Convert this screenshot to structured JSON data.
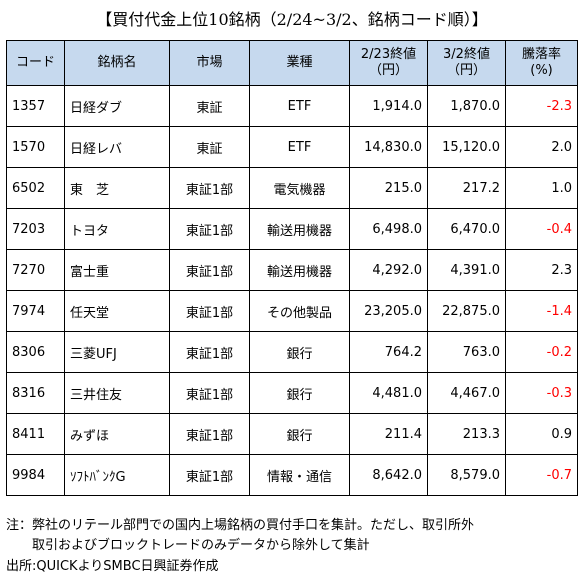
{
  "title": "【買付代金上位10銘柄（2/24~3/2、銘柄コード順）】",
  "headers": {
    "code": "コード",
    "name": "銘柄名",
    "market": "市場",
    "sector": "業種",
    "price1_line1": "2/23終値",
    "price1_line2": "（円）",
    "price2_line1": "3/2終値",
    "price2_line2": "（円）",
    "change_line1": "騰落率",
    "change_line2": "(%)"
  },
  "rows": [
    {
      "code": "1357",
      "name": "日経ダブ",
      "market": "東証",
      "sector": "ETF",
      "price1": "1,914.0",
      "price2": "1,870.0",
      "change": "-2.3",
      "negative": true
    },
    {
      "code": "1570",
      "name": "日経レバ",
      "market": "東証",
      "sector": "ETF",
      "price1": "14,830.0",
      "price2": "15,120.0",
      "change": "2.0",
      "negative": false
    },
    {
      "code": "6502",
      "name": "東　芝",
      "market": "東証1部",
      "sector": "電気機器",
      "price1": "215.0",
      "price2": "217.2",
      "change": "1.0",
      "negative": false
    },
    {
      "code": "7203",
      "name": "トヨタ",
      "market": "東証1部",
      "sector": "輸送用機器",
      "price1": "6,498.0",
      "price2": "6,470.0",
      "change": "-0.4",
      "negative": true
    },
    {
      "code": "7270",
      "name": "富士重",
      "market": "東証1部",
      "sector": "輸送用機器",
      "price1": "4,292.0",
      "price2": "4,391.0",
      "change": "2.3",
      "negative": false
    },
    {
      "code": "7974",
      "name": "任天堂",
      "market": "東証1部",
      "sector": "その他製品",
      "price1": "23,205.0",
      "price2": "22,875.0",
      "change": "-1.4",
      "negative": true
    },
    {
      "code": "8306",
      "name": "三菱UFJ",
      "market": "東証1部",
      "sector": "銀行",
      "price1": "764.2",
      "price2": "763.0",
      "change": "-0.2",
      "negative": true
    },
    {
      "code": "8316",
      "name": "三井住友",
      "market": "東証1部",
      "sector": "銀行",
      "price1": "4,481.0",
      "price2": "4,467.0",
      "change": "-0.3",
      "negative": true
    },
    {
      "code": "8411",
      "name": "みずほ",
      "market": "東証1部",
      "sector": "銀行",
      "price1": "211.4",
      "price2": "213.3",
      "change": "0.9",
      "negative": false
    },
    {
      "code": "9984",
      "name": "ｿﾌﾄﾊﾞﾝｸG",
      "market": "東証1部",
      "sector": "情報・通信",
      "price1": "8,642.0",
      "price2": "8,579.0",
      "change": "-0.7",
      "negative": true
    }
  ],
  "notes": {
    "line1": "注：弊社のリテール部門での国内上場銘柄の買付手口を集計。ただし、取引所外",
    "line2": "取引およびブロックトレードのみデータから除外して集計",
    "source": "出所:QUICKよりSMBC日興証券作成"
  },
  "colors": {
    "header_bg": "#c6d9ee",
    "negative": "#ff0000"
  }
}
